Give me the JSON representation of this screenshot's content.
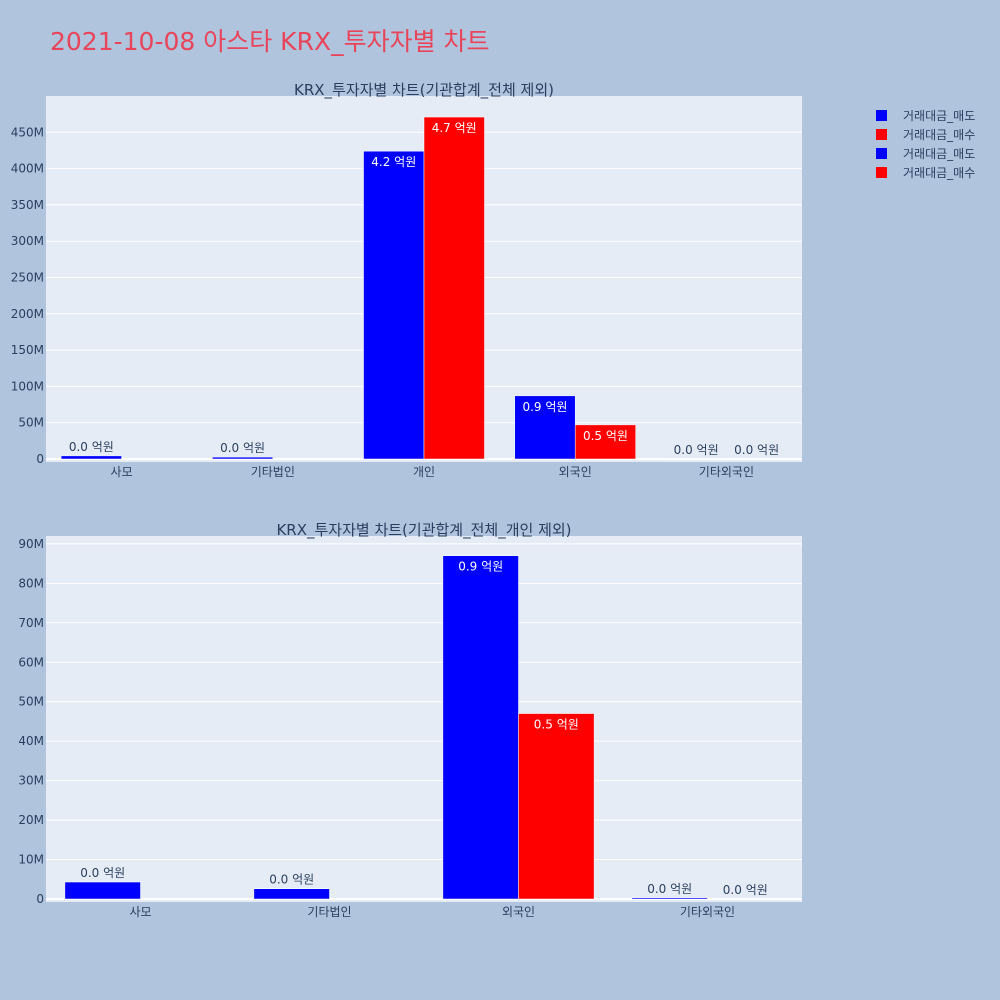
{
  "title": "2021-10-08 아스타 KRX_투자자별 차트",
  "legend": [
    {
      "label": "거래대금_매도",
      "color": "#0000ff"
    },
    {
      "label": "거래대금_매수",
      "color": "#ff0000"
    },
    {
      "label": "거래대금_매도",
      "color": "#0000ff"
    },
    {
      "label": "거래대금_매수",
      "color": "#ff0000"
    }
  ],
  "chart_data": [
    {
      "type": "bar",
      "title": "KRX_투자자별 차트(기관합계_전체 제외)",
      "categories": [
        "사모",
        "기타법인",
        "개인",
        "외국인",
        "기타외국인"
      ],
      "yticks": [
        "0",
        "50M",
        "100M",
        "150M",
        "200M",
        "250M",
        "300M",
        "350M",
        "400M",
        "450M"
      ],
      "ylim": [
        0,
        500000000
      ],
      "series": [
        {
          "name": "거래대금_매도",
          "color": "#0000ff",
          "values": [
            4300000,
            2600000,
            424000000,
            87000000,
            300000
          ],
          "labels": [
            "0.0 억원",
            "0.0 억원",
            "4.2 억원",
            "0.9 억원",
            "0.0 억원"
          ]
        },
        {
          "name": "거래대금_매수",
          "color": "#ff0000",
          "values": [
            0,
            0,
            471000000,
            47000000,
            0
          ],
          "labels": [
            "",
            "",
            "4.7 억원",
            "0.5 억원",
            "0.0 억원"
          ]
        }
      ]
    },
    {
      "type": "bar",
      "title": "KRX_투자자별 차트(기관합계_전체_개인 제외)",
      "categories": [
        "사모",
        "기타법인",
        "외국인",
        "기타외국인"
      ],
      "yticks": [
        "0",
        "10M",
        "20M",
        "30M",
        "40M",
        "50M",
        "60M",
        "70M",
        "80M",
        "90M"
      ],
      "ylim": [
        0,
        92000000
      ],
      "series": [
        {
          "name": "거래대금_매도",
          "color": "#0000ff",
          "values": [
            4300000,
            2600000,
            87000000,
            300000
          ],
          "labels": [
            "0.0 억원",
            "0.0 억원",
            "0.9 억원",
            "0.0 억원"
          ]
        },
        {
          "name": "거래대금_매수",
          "color": "#ff0000",
          "values": [
            0,
            0,
            47000000,
            0
          ],
          "labels": [
            "",
            "",
            "0.5 억원",
            "0.0 억원"
          ]
        }
      ]
    }
  ]
}
